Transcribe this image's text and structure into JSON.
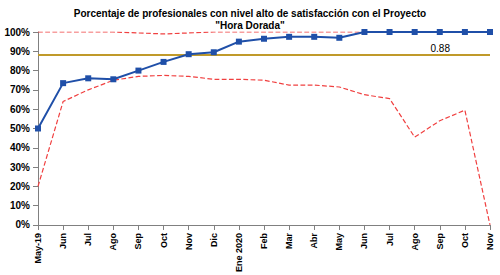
{
  "chart_data": {
    "type": "line",
    "title": "Porcentaje de profesionales con nivel alto de satisfacción con el Proyecto\n\"Hora Dorada\"",
    "categories": [
      "May-19",
      "Jun",
      "Jul",
      "Ago",
      "Sep",
      "Oct",
      "Nov",
      "Dic",
      "Ene 2020",
      "Feb",
      "Mar",
      "Abr",
      "May",
      "Jun",
      "Jul",
      "Ago",
      "Sep",
      "Oct",
      "Nov"
    ],
    "series": [
      {
        "color": "#1f4fa8",
        "marker": "square",
        "line_style": "solid",
        "values": [
          50,
          73.5,
          76,
          75.5,
          80,
          84.5,
          88.5,
          89.5,
          95,
          96.5,
          97.5,
          97.5,
          97,
          100,
          100,
          100,
          100,
          100,
          100
        ]
      },
      {
        "color": "#f04040",
        "marker": "none",
        "line_style": "dashed",
        "values": [
          100,
          100,
          100,
          100,
          99.5,
          99,
          99.5,
          100,
          100,
          100,
          100,
          100,
          100,
          100,
          100,
          100,
          100,
          100,
          100
        ]
      },
      {
        "color": "#f04040",
        "marker": "none",
        "line_style": "dashed",
        "values": [
          20,
          64,
          70,
          75,
          77,
          77.5,
          77,
          75.5,
          75.5,
          75,
          72.5,
          72.5,
          71.5,
          67.5,
          65.5,
          45.5,
          54,
          59.5,
          0
        ]
      }
    ],
    "reference_lines": [
      {
        "value": 88,
        "label": "0.88",
        "color": "#c09a2a"
      }
    ],
    "ylim": [
      0,
      100
    ],
    "yticks": [
      {
        "value": 0,
        "label": "0%"
      },
      {
        "value": 10,
        "label": "10%"
      },
      {
        "value": 20,
        "label": "20%"
      },
      {
        "value": 30,
        "label": "30%"
      },
      {
        "value": 40,
        "label": "40%"
      },
      {
        "value": 50,
        "label": "50%"
      },
      {
        "value": 60,
        "label": "60%"
      },
      {
        "value": 70,
        "label": "70%"
      },
      {
        "value": 80,
        "label": "80%"
      },
      {
        "value": 90,
        "label": "90%"
      },
      {
        "value": 100,
        "label": "100%"
      }
    ],
    "grid": false
  }
}
